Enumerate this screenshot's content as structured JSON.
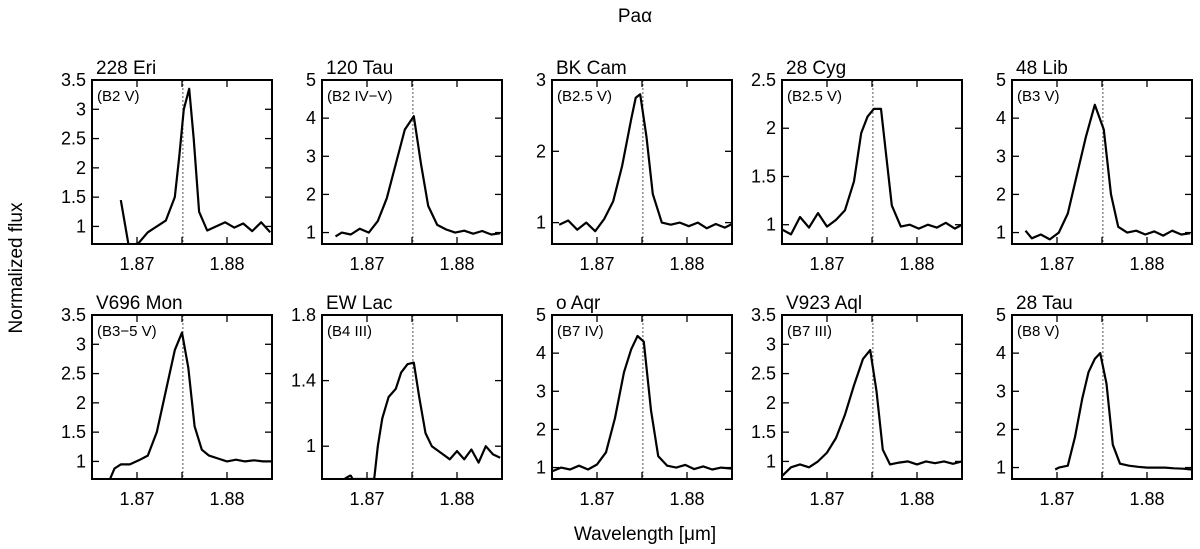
{
  "chart_data": {
    "type": "line",
    "title": "Paα",
    "xlabel": "Wavelength [μm]",
    "ylabel": "Normalized flux",
    "xlim": [
      1.865,
      1.885
    ],
    "xticks": [
      1.87,
      1.875,
      1.88
    ],
    "xtick_labels": [
      "1.87",
      "1.88"
    ],
    "xtick_label_values": [
      1.87,
      1.88
    ],
    "reference_wavelength": 1.8751,
    "line_color": "#000000",
    "panels": [
      {
        "name": "228 Eri",
        "sptype": "(B2 V)",
        "ylim": [
          0.7,
          3.5
        ],
        "ytick_labels": [
          "1",
          "1.5",
          "2",
          "2.5",
          "3",
          "3.5"
        ],
        "ytick_values": [
          1,
          1.5,
          2,
          2.5,
          3,
          3.5
        ],
        "x": [
          1.8682,
          1.8691,
          1.8702,
          1.8712,
          1.8722,
          1.8732,
          1.8742,
          1.8747,
          1.8752,
          1.8758,
          1.8763,
          1.8769,
          1.8778,
          1.8788,
          1.8798,
          1.8808,
          1.8818,
          1.8828,
          1.8838,
          1.8848
        ],
        "y": [
          1.45,
          0.65,
          0.72,
          0.9,
          1.0,
          1.1,
          1.5,
          2.2,
          3.0,
          3.35,
          2.5,
          1.25,
          0.93,
          1.0,
          1.07,
          0.98,
          1.05,
          0.92,
          1.07,
          0.9
        ]
      },
      {
        "name": "120 Tau",
        "sptype": "(B2 IV−V)",
        "ylim": [
          0.7,
          5.0
        ],
        "ytick_labels": [
          "1",
          "2",
          "3",
          "4",
          "5"
        ],
        "ytick_values": [
          1,
          2,
          3,
          4,
          5
        ],
        "x": [
          1.8665,
          1.8672,
          1.8682,
          1.8692,
          1.8702,
          1.8712,
          1.8722,
          1.8732,
          1.8742,
          1.8752,
          1.876,
          1.8768,
          1.8778,
          1.8788,
          1.8798,
          1.8808,
          1.8818,
          1.8828,
          1.8838,
          1.8848
        ],
        "y": [
          0.9,
          1.0,
          0.95,
          1.1,
          1.0,
          1.3,
          1.9,
          2.8,
          3.7,
          4.05,
          2.8,
          1.7,
          1.2,
          1.08,
          1.0,
          1.05,
          0.97,
          1.04,
          0.95,
          0.98
        ]
      },
      {
        "name": "BK Cam",
        "sptype": "(B2.5 V)",
        "ylim": [
          0.7,
          3.0
        ],
        "ytick_labels": [
          "1",
          "2",
          "3"
        ],
        "ytick_values": [
          1,
          2,
          3
        ],
        "x": [
          1.8658,
          1.8668,
          1.8678,
          1.8688,
          1.8698,
          1.8708,
          1.8718,
          1.8728,
          1.8738,
          1.8743,
          1.8748,
          1.8755,
          1.8762,
          1.8772,
          1.8782,
          1.8792,
          1.8802,
          1.8812,
          1.8822,
          1.8832,
          1.8842,
          1.885
        ],
        "y": [
          0.97,
          1.03,
          0.9,
          1.0,
          0.88,
          1.05,
          1.3,
          1.8,
          2.45,
          2.75,
          2.8,
          2.2,
          1.4,
          1.0,
          0.97,
          1.0,
          0.95,
          1.0,
          0.92,
          0.98,
          0.93,
          0.98
        ]
      },
      {
        "name": "28 Cyg",
        "sptype": "(B2.5 V)",
        "ylim": [
          0.8,
          2.5
        ],
        "ytick_labels": [
          "1",
          "1.5",
          "2",
          "2.5"
        ],
        "ytick_values": [
          1,
          1.5,
          2,
          2.5
        ],
        "x": [
          1.865,
          1.866,
          1.867,
          1.868,
          1.869,
          1.87,
          1.871,
          1.872,
          1.873,
          1.8738,
          1.8745,
          1.8752,
          1.876,
          1.8766,
          1.8772,
          1.8782,
          1.8792,
          1.8802,
          1.8812,
          1.8822,
          1.8832,
          1.8842,
          1.885
        ],
        "y": [
          0.95,
          0.9,
          1.08,
          0.97,
          1.12,
          0.98,
          1.05,
          1.15,
          1.45,
          1.95,
          2.12,
          2.2,
          2.2,
          1.7,
          1.2,
          0.98,
          1.0,
          0.96,
          1.0,
          0.97,
          1.02,
          0.96,
          1.0
        ]
      },
      {
        "name": "48 Lib",
        "sptype": "(B3 V)",
        "ylim": [
          0.7,
          5.0
        ],
        "ytick_labels": [
          "1",
          "2",
          "3",
          "4",
          "5"
        ],
        "ytick_values": [
          1,
          2,
          3,
          4,
          5
        ],
        "x": [
          1.8665,
          1.8672,
          1.8682,
          1.8692,
          1.8702,
          1.8712,
          1.8722,
          1.8732,
          1.8742,
          1.8752,
          1.876,
          1.8768,
          1.8778,
          1.8788,
          1.8798,
          1.8808,
          1.8818,
          1.8828,
          1.8838,
          1.8848
        ],
        "y": [
          1.05,
          0.85,
          0.95,
          0.82,
          1.0,
          1.5,
          2.5,
          3.5,
          4.35,
          3.7,
          2.0,
          1.15,
          1.0,
          1.05,
          0.95,
          1.03,
          0.92,
          1.05,
          0.95,
          0.98
        ]
      },
      {
        "name": "V696 Mon",
        "sptype": "(B3−5 V)",
        "ylim": [
          0.7,
          3.5
        ],
        "ytick_labels": [
          "1",
          "1.5",
          "2",
          "2.5",
          "3",
          "3.5"
        ],
        "ytick_values": [
          1,
          1.5,
          2,
          2.5,
          3,
          3.5
        ],
        "x": [
          1.867,
          1.8675,
          1.8682,
          1.8692,
          1.8702,
          1.8712,
          1.8722,
          1.8732,
          1.8742,
          1.875,
          1.8757,
          1.8764,
          1.8772,
          1.878,
          1.879,
          1.88,
          1.881,
          1.882,
          1.883,
          1.884,
          1.885
        ],
        "y": [
          0.7,
          0.88,
          0.95,
          0.95,
          1.02,
          1.1,
          1.5,
          2.2,
          2.9,
          3.2,
          2.6,
          1.6,
          1.2,
          1.1,
          1.05,
          1.0,
          1.03,
          1.0,
          1.02,
          1.0,
          1.0
        ]
      },
      {
        "name": "EW Lac",
        "sptype": "(B4 III)",
        "ylim": [
          0.8,
          1.8
        ],
        "ytick_labels": [
          "1",
          "1.4",
          "1.8"
        ],
        "ytick_values": [
          1,
          1.4,
          1.8
        ],
        "x": [
          1.8675,
          1.8681,
          1.8682,
          1.8684,
          1.869,
          1.87,
          1.8708,
          1.8712,
          1.8717,
          1.8724,
          1.8732,
          1.8738,
          1.8745,
          1.8752,
          1.8758,
          1.8765,
          1.8772,
          1.8782,
          1.8792,
          1.88,
          1.8808,
          1.8816,
          1.8824,
          1.8832,
          1.884,
          1.8848
        ],
        "y": [
          0.8,
          0.82,
          0.82,
          0.8,
          0.8,
          0.8,
          0.8,
          1.0,
          1.17,
          1.3,
          1.35,
          1.45,
          1.5,
          1.51,
          1.3,
          1.08,
          1.0,
          0.96,
          0.92,
          0.97,
          0.92,
          0.98,
          0.9,
          1.0,
          0.95,
          0.93
        ]
      },
      {
        "name": "o Aqr",
        "sptype": "(B7 IV)",
        "ylim": [
          0.7,
          5.0
        ],
        "ytick_labels": [
          "1",
          "2",
          "3",
          "4",
          "5"
        ],
        "ytick_values": [
          1,
          2,
          3,
          4,
          5
        ],
        "x": [
          1.865,
          1.866,
          1.867,
          1.868,
          1.869,
          1.87,
          1.871,
          1.872,
          1.873,
          1.8738,
          1.8745,
          1.8752,
          1.876,
          1.8768,
          1.8778,
          1.8788,
          1.8798,
          1.8808,
          1.8818,
          1.8828,
          1.8838,
          1.885
        ],
        "y": [
          0.9,
          1.0,
          0.95,
          1.05,
          0.95,
          1.08,
          1.4,
          2.3,
          3.5,
          4.1,
          4.45,
          4.3,
          2.5,
          1.3,
          1.05,
          1.0,
          1.07,
          0.96,
          1.03,
          0.95,
          1.0,
          0.97
        ]
      },
      {
        "name": "V923 Aql",
        "sptype": "(B7 III)",
        "ylim": [
          0.7,
          3.5
        ],
        "ytick_labels": [
          "1",
          "1.5",
          "2",
          "2.5",
          "3",
          "3.5"
        ],
        "ytick_values": [
          1,
          1.5,
          2,
          2.5,
          3,
          3.5
        ],
        "x": [
          1.865,
          1.866,
          1.867,
          1.868,
          1.869,
          1.87,
          1.871,
          1.872,
          1.873,
          1.874,
          1.8748,
          1.8755,
          1.8762,
          1.877,
          1.878,
          1.879,
          1.88,
          1.881,
          1.882,
          1.883,
          1.884,
          1.885
        ],
        "y": [
          0.75,
          0.9,
          0.95,
          0.9,
          1.0,
          1.15,
          1.4,
          1.8,
          2.3,
          2.75,
          2.9,
          2.2,
          1.2,
          0.95,
          0.98,
          1.0,
          0.95,
          1.0,
          0.97,
          1.0,
          0.96,
          1.0
        ]
      },
      {
        "name": "28 Tau",
        "sptype": "(B8 V)",
        "ylim": [
          0.7,
          5.0
        ],
        "ytick_labels": [
          "1",
          "2",
          "3",
          "4",
          "5"
        ],
        "ytick_values": [
          1,
          2,
          3,
          4,
          5
        ],
        "x": [
          1.8698,
          1.8702,
          1.8712,
          1.872,
          1.8728,
          1.8735,
          1.8742,
          1.8748,
          1.8755,
          1.8762,
          1.877,
          1.878,
          1.879,
          1.88,
          1.881,
          1.882,
          1.883,
          1.884,
          1.885
        ],
        "y": [
          0.95,
          1.0,
          1.05,
          1.8,
          2.8,
          3.5,
          3.85,
          4.0,
          3.2,
          1.6,
          1.1,
          1.05,
          1.02,
          1.0,
          1.0,
          1.0,
          0.98,
          0.97,
          0.95
        ]
      }
    ]
  }
}
